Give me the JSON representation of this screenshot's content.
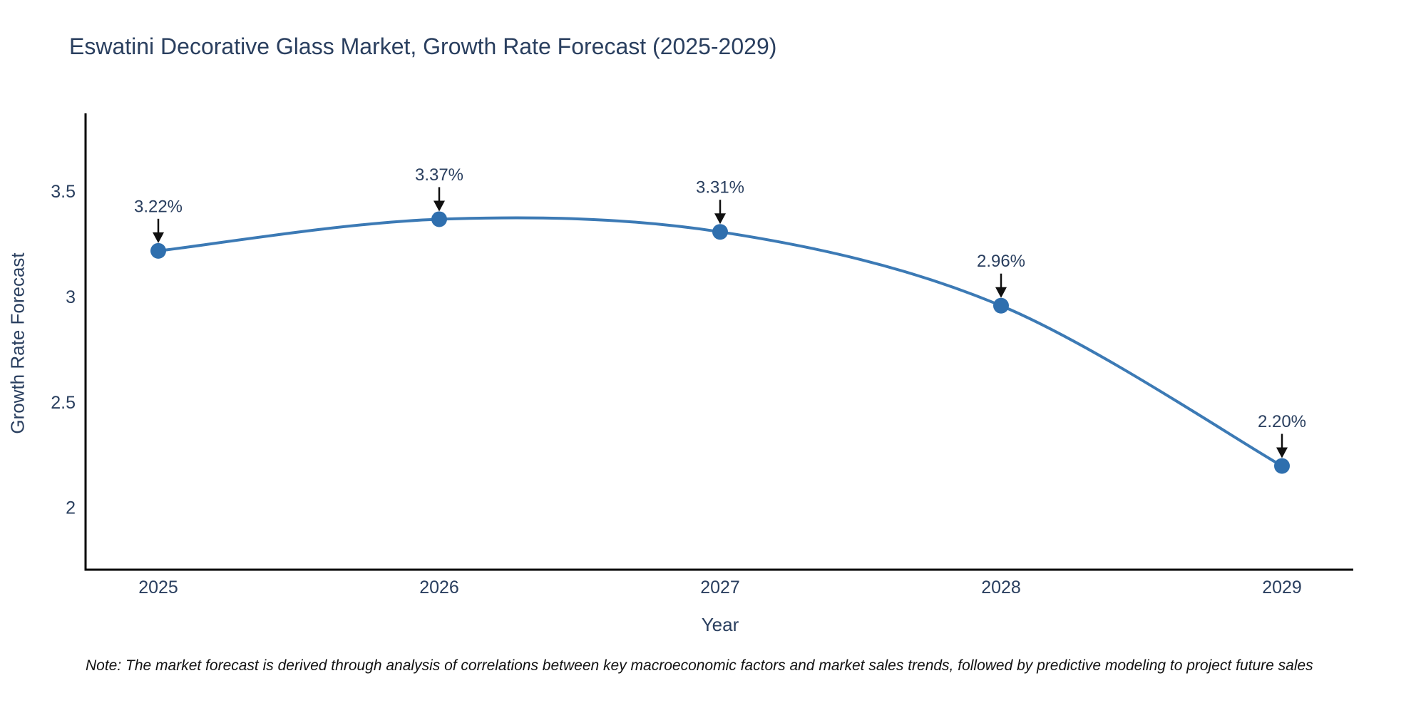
{
  "chart_data": {
    "type": "line",
    "title": "Eswatini Decorative Glass Market, Growth Rate Forecast (2025-2029)",
    "xlabel": "Year",
    "ylabel": "Growth Rate Forecast",
    "categories": [
      "2025",
      "2026",
      "2027",
      "2028",
      "2029"
    ],
    "values": [
      3.22,
      3.37,
      3.31,
      2.96,
      2.2
    ],
    "point_labels": [
      "3.22%",
      "3.37%",
      "3.31%",
      "2.96%",
      "2.20%"
    ],
    "yticks": [
      {
        "value": 3.5,
        "label": "3.5"
      },
      {
        "value": 3.0,
        "label": "3"
      },
      {
        "value": 2.5,
        "label": "2.5"
      },
      {
        "value": 2.0,
        "label": "2"
      }
    ],
    "ylim": [
      1.708,
      3.872
    ],
    "grid": false,
    "legend": "none",
    "line_shape": "spline",
    "note": "Note: The market forecast is derived through analysis of correlations between key macroeconomic factors and market sales trends, followed by predictive modeling to project future sales",
    "colors": {
      "line": "#3c7ab5",
      "marker": "#2f6fae",
      "title_text": "#2a3f5f",
      "tick_text": "#2a3f5f",
      "annotation_text": "#2a3f5f",
      "axis_line": "#000000",
      "arrow": "#101010",
      "note_text": "#111111",
      "background": "#ffffff"
    }
  }
}
